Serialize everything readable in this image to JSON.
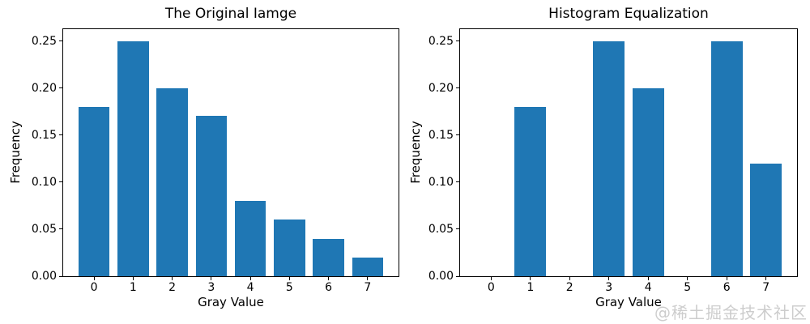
{
  "figure": {
    "background": "#ffffff",
    "bar_color": "#1f77b4",
    "spine_color": "#000000",
    "text_color": "#000000"
  },
  "watermark": {
    "text": "@稀土掘金技术社区",
    "color": "#cdcdcd"
  },
  "chart_data": [
    {
      "type": "bar",
      "title": "The Original Iamge",
      "xlabel": "Gray Value",
      "ylabel": "Frequency",
      "categories": [
        "0",
        "1",
        "2",
        "3",
        "4",
        "5",
        "6",
        "7"
      ],
      "values": [
        0.18,
        0.25,
        0.2,
        0.17,
        0.08,
        0.06,
        0.04,
        0.02
      ],
      "yticks": [
        "0.00",
        "0.05",
        "0.10",
        "0.15",
        "0.20",
        "0.25"
      ],
      "ylim": [
        0,
        0.2625
      ],
      "xlim": [
        -0.79,
        7.79
      ],
      "bar_width": 0.8,
      "grid": false,
      "legend": null
    },
    {
      "type": "bar",
      "title": "Histogram Equalization",
      "xlabel": "Gray Value",
      "ylabel": "Frequency",
      "categories": [
        "0",
        "1",
        "2",
        "3",
        "4",
        "5",
        "6",
        "7"
      ],
      "values": [
        0,
        0.18,
        0,
        0.25,
        0.2,
        0,
        0.25,
        0.12
      ],
      "yticks": [
        "0.00",
        "0.05",
        "0.10",
        "0.15",
        "0.20",
        "0.25"
      ],
      "ylim": [
        0,
        0.2625
      ],
      "xlim": [
        -0.79,
        7.79
      ],
      "bar_width": 0.8,
      "grid": false,
      "legend": null
    }
  ]
}
